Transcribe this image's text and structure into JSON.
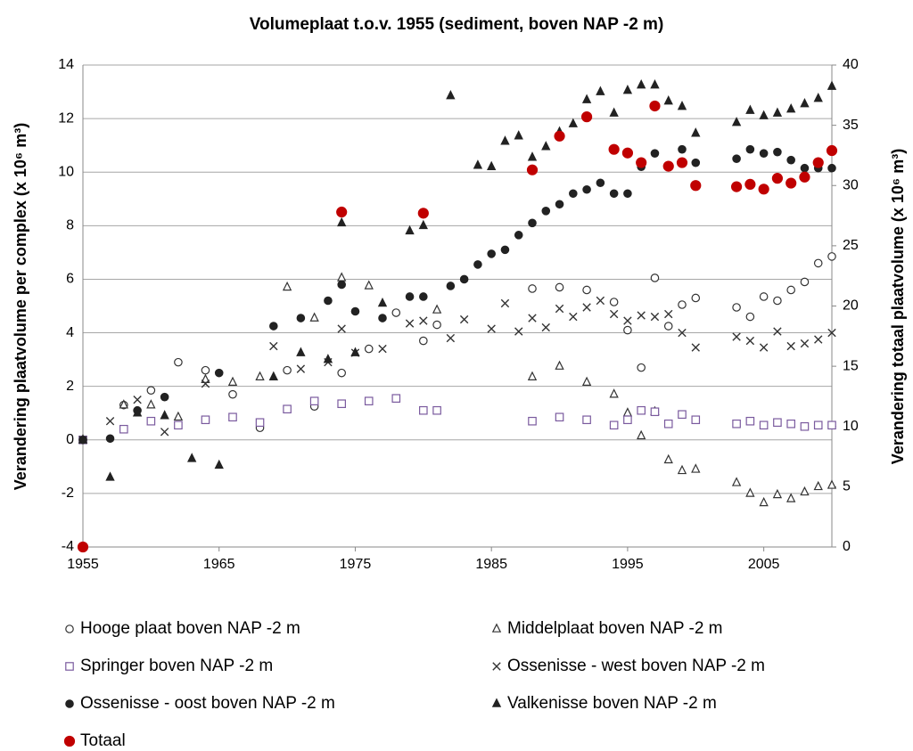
{
  "chart_data": {
    "type": "scatter",
    "title": "Volumeplaat  t.o.v. 1955 (sediment, boven NAP -2 m)",
    "ylabel": "Verandering plaatvolume per complex  (x 10⁶ m³)",
    "y2label": "Verandering totaal  plaatvolume (x 10⁶ m³)",
    "xlim": [
      1955,
      2010
    ],
    "xticks": [
      1955,
      1965,
      1975,
      1985,
      1995,
      2005
    ],
    "ylim": [
      -4,
      14
    ],
    "yticks": [
      -4,
      -2,
      0,
      2,
      4,
      6,
      8,
      10,
      12,
      14
    ],
    "y2lim": [
      0,
      40
    ],
    "y2ticks": [
      0,
      5,
      10,
      15,
      20,
      25,
      30,
      35,
      40
    ],
    "grid": true,
    "legend": "bottom",
    "series": [
      {
        "name": "Hooge plaat boven NAP -2 m",
        "color": "#333333",
        "marker": "circle-open",
        "x": [
          1955,
          1958,
          1960,
          1962,
          1964,
          1966,
          1968,
          1970,
          1972,
          1974,
          1976,
          1978,
          1980,
          1981,
          1988,
          1990,
          1992,
          1994,
          1995,
          1996,
          1997,
          1998,
          1999,
          2000,
          2003,
          2004,
          2005,
          2006,
          2007,
          2008,
          2009,
          2010
        ],
        "values": [
          0,
          1.3,
          1.85,
          2.9,
          2.6,
          1.7,
          0.45,
          2.6,
          1.25,
          2.5,
          3.4,
          4.75,
          3.7,
          4.3,
          5.65,
          5.7,
          5.6,
          5.15,
          4.1,
          2.7,
          6.05,
          4.25,
          5.05,
          5.3,
          4.95,
          4.6,
          5.35,
          5.2,
          5.6,
          5.9,
          6.6,
          6.85
        ]
      },
      {
        "name": "Middelplaat boven NAP -2 m",
        "color": "#333333",
        "marker": "triangle-open",
        "x": [
          1955,
          1958,
          1960,
          1962,
          1964,
          1966,
          1968,
          1970,
          1972,
          1974,
          1976,
          1981,
          1988,
          1990,
          1992,
          1994,
          1995,
          1996,
          1997,
          1998,
          1999,
          2000,
          2003,
          2004,
          2005,
          2006,
          2007,
          2008,
          2009,
          2010
        ],
        "values": [
          0,
          1.3,
          1.3,
          0.85,
          2.25,
          2.15,
          2.35,
          5.7,
          4.55,
          6.05,
          5.75,
          4.85,
          2.35,
          2.75,
          2.15,
          1.7,
          1.0,
          0.15,
          1.05,
          -0.75,
          -1.15,
          -1.1,
          -1.6,
          -2.0,
          -2.35,
          -2.05,
          -2.2,
          -1.95,
          -1.75,
          -1.7
        ]
      },
      {
        "name": "Springer boven NAP -2 m",
        "color": "#7a5a9e",
        "marker": "square-open",
        "x": [
          1955,
          1958,
          1960,
          1962,
          1964,
          1966,
          1968,
          1970,
          1972,
          1974,
          1976,
          1978,
          1980,
          1981,
          1988,
          1990,
          1992,
          1994,
          1995,
          1996,
          1997,
          1998,
          1999,
          2000,
          2003,
          2004,
          2005,
          2006,
          2007,
          2008,
          2009,
          2010
        ],
        "values": [
          0,
          0.4,
          0.7,
          0.55,
          0.75,
          0.85,
          0.65,
          1.15,
          1.45,
          1.35,
          1.45,
          1.55,
          1.1,
          1.1,
          0.7,
          0.85,
          0.75,
          0.55,
          0.75,
          1.1,
          1.05,
          0.6,
          0.95,
          0.75,
          0.6,
          0.7,
          0.55,
          0.65,
          0.6,
          0.5,
          0.55,
          0.55
        ]
      },
      {
        "name": "Ossenisse - west boven NAP -2 m",
        "color": "#333333",
        "marker": "x",
        "x": [
          1955,
          1957,
          1959,
          1961,
          1964,
          1969,
          1971,
          1973,
          1974,
          1975,
          1977,
          1979,
          1980,
          1982,
          1983,
          1985,
          1986,
          1987,
          1988,
          1989,
          1990,
          1991,
          1992,
          1993,
          1994,
          1995,
          1996,
          1997,
          1998,
          1999,
          2000,
          2003,
          2004,
          2005,
          2006,
          2007,
          2008,
          2009,
          2010
        ],
        "values": [
          0,
          0.7,
          1.5,
          0.3,
          2.1,
          3.5,
          2.65,
          2.9,
          4.15,
          3.25,
          3.4,
          4.35,
          4.45,
          3.8,
          4.5,
          4.15,
          5.1,
          4.05,
          4.55,
          4.2,
          4.9,
          4.6,
          4.95,
          5.2,
          4.7,
          4.45,
          4.65,
          4.6,
          4.7,
          4.0,
          3.45,
          3.85,
          3.7,
          3.45,
          4.05,
          3.5,
          3.6,
          3.75,
          4.0
        ]
      },
      {
        "name": "Ossenisse - oost boven NAP -2 m",
        "color": "#222222",
        "marker": "circle",
        "x": [
          1955,
          1957,
          1959,
          1961,
          1965,
          1969,
          1971,
          1973,
          1974,
          1975,
          1977,
          1979,
          1980,
          1982,
          1983,
          1984,
          1985,
          1986,
          1987,
          1988,
          1989,
          1990,
          1991,
          1992,
          1993,
          1994,
          1995,
          1996,
          1997,
          1999,
          2000,
          2003,
          2004,
          2005,
          2006,
          2007,
          2008,
          2009,
          2010
        ],
        "values": [
          0,
          0.05,
          1.1,
          1.6,
          2.5,
          4.25,
          4.55,
          5.2,
          5.8,
          4.8,
          4.55,
          5.35,
          5.35,
          5.75,
          6.0,
          6.55,
          6.95,
          7.1,
          7.65,
          8.1,
          8.55,
          8.8,
          9.2,
          9.35,
          9.6,
          9.2,
          9.2,
          10.2,
          10.7,
          10.85,
          10.35,
          10.5,
          10.85,
          10.7,
          10.75,
          10.45,
          10.15,
          10.15,
          10.15
        ]
      },
      {
        "name": "Valkenisse boven NAP -2 m",
        "color": "#222222",
        "marker": "triangle",
        "x": [
          1955,
          1957,
          1959,
          1961,
          1963,
          1965,
          1969,
          1971,
          1973,
          1974,
          1975,
          1977,
          1979,
          1980,
          1982,
          1984,
          1985,
          1986,
          1987,
          1988,
          1989,
          1990,
          1991,
          1992,
          1993,
          1994,
          1995,
          1996,
          1997,
          1998,
          1999,
          2000,
          2003,
          2004,
          2005,
          2006,
          2007,
          2008,
          2009,
          2010
        ],
        "values": [
          0,
          -1.4,
          1.0,
          0.9,
          -0.7,
          -0.95,
          2.35,
          3.25,
          3.0,
          8.1,
          3.25,
          5.1,
          7.8,
          8.0,
          12.85,
          10.25,
          10.2,
          11.15,
          11.35,
          10.55,
          10.95,
          11.5,
          11.8,
          12.7,
          13.0,
          12.2,
          13.05,
          13.25,
          13.25,
          12.65,
          12.45,
          11.45,
          11.85,
          12.3,
          12.1,
          12.2,
          12.35,
          12.55,
          12.75,
          13.2
        ]
      },
      {
        "name": "Totaal",
        "color": "#c00000",
        "marker": "circle",
        "axis": "y2",
        "x": [
          1955,
          1974,
          1980,
          1988,
          1990,
          1992,
          1994,
          1995,
          1996,
          1997,
          1998,
          1999,
          2000,
          2003,
          2004,
          2005,
          2006,
          2007,
          2008,
          2009,
          2010
        ],
        "values": [
          0,
          27.8,
          27.7,
          31.3,
          34.1,
          35.7,
          33.0,
          32.7,
          31.9,
          36.6,
          31.6,
          31.9,
          30.0,
          29.9,
          30.1,
          29.7,
          30.6,
          30.2,
          30.7,
          31.9,
          32.9
        ]
      }
    ]
  }
}
